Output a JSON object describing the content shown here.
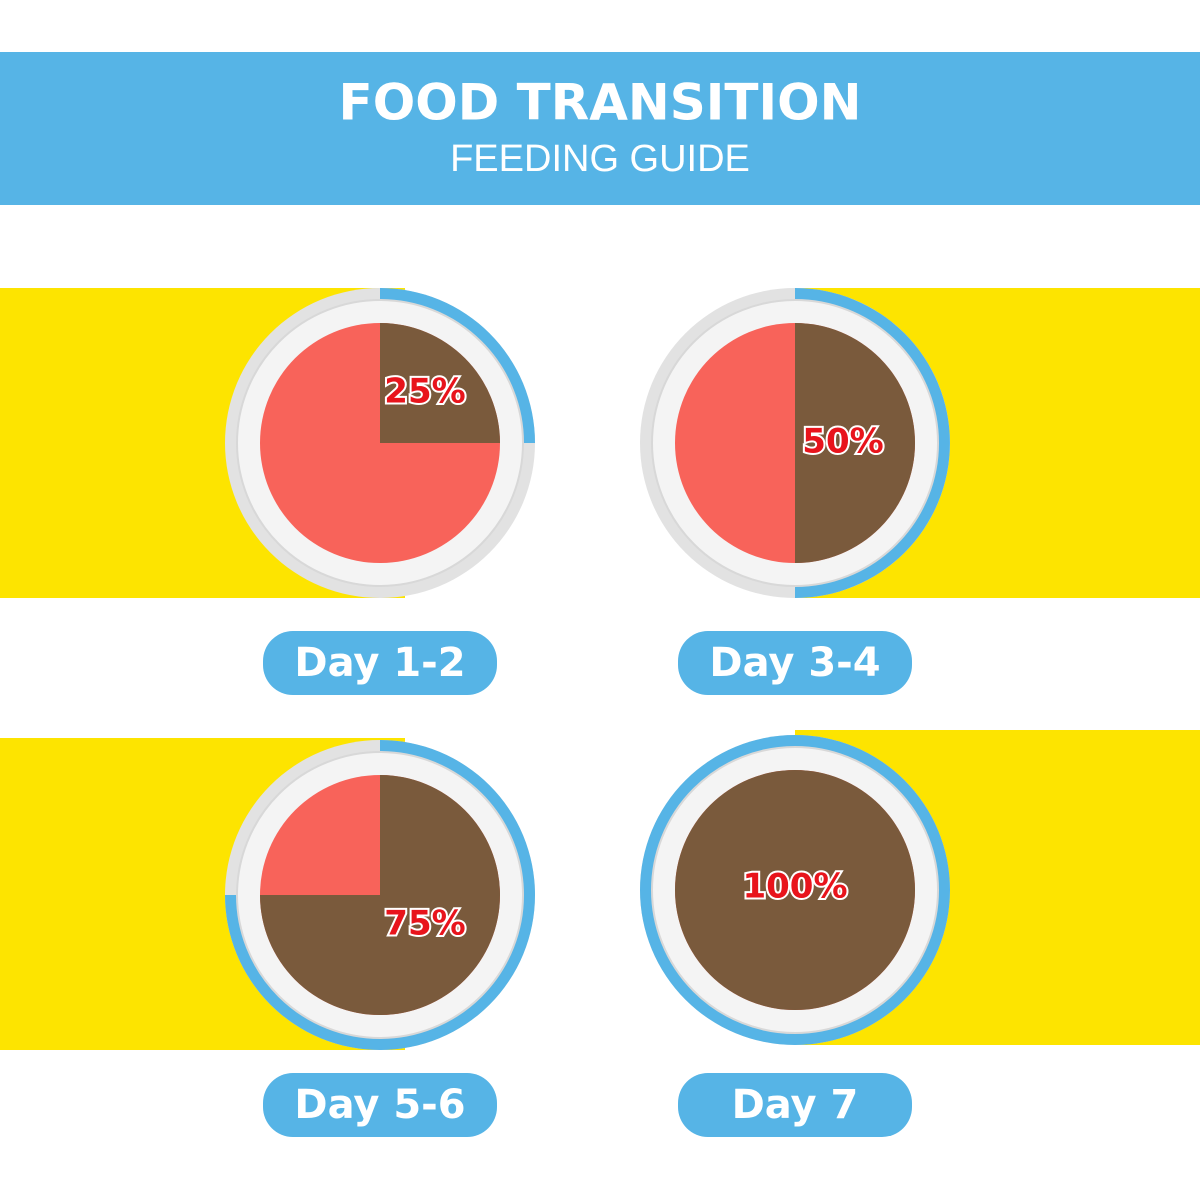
{
  "header": {
    "title": "FOOD TRANSITION",
    "subtitle": "FEEDING GUIDE"
  },
  "stages": [
    {
      "day": "Day 1-2",
      "value": 25,
      "value_label": "25%"
    },
    {
      "day": "Day 3-4",
      "value": 50,
      "value_label": "50%"
    },
    {
      "day": "Day 5-6",
      "value": 75,
      "value_label": "75%"
    },
    {
      "day": "Day 7",
      "value": 100,
      "value_label": "100%"
    }
  ]
}
